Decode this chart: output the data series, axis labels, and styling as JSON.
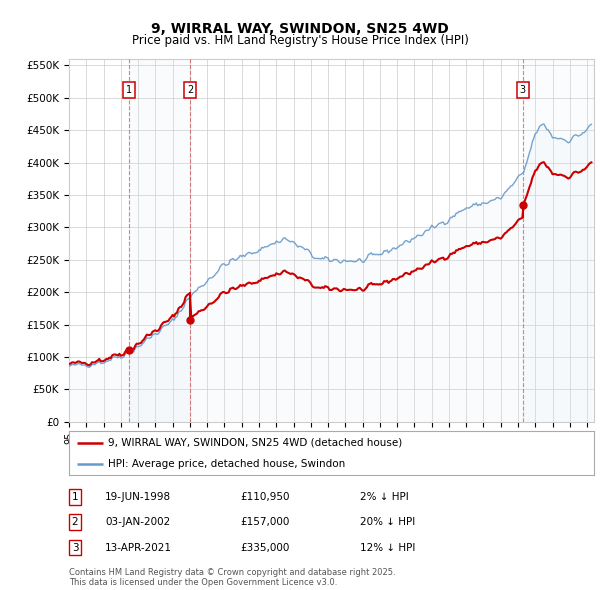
{
  "title": "9, WIRRAL WAY, SWINDON, SN25 4WD",
  "subtitle": "Price paid vs. HM Land Registry's House Price Index (HPI)",
  "legend_house": "9, WIRRAL WAY, SWINDON, SN25 4WD (detached house)",
  "legend_hpi": "HPI: Average price, detached house, Swindon",
  "sale1_date": "19-JUN-1998",
  "sale1_price": 110950,
  "sale1_hpi": "2% ↓ HPI",
  "sale2_date": "03-JAN-2002",
  "sale2_price": 157000,
  "sale2_hpi": "20% ↓ HPI",
  "sale3_date": "13-APR-2021",
  "sale3_price": 335000,
  "sale3_hpi": "12% ↓ HPI",
  "footer": "Contains HM Land Registry data © Crown copyright and database right 2025.\nThis data is licensed under the Open Government Licence v3.0.",
  "house_color": "#cc0000",
  "hpi_color": "#6699cc",
  "hpi_fill_color": "#dae8f5",
  "background_color": "#ffffff",
  "grid_color": "#cccccc",
  "ylim": [
    0,
    560000
  ],
  "yticks": [
    0,
    50000,
    100000,
    150000,
    200000,
    250000,
    300000,
    350000,
    400000,
    450000,
    500000,
    550000
  ],
  "ytick_labels": [
    "£0",
    "£50K",
    "£100K",
    "£150K",
    "£200K",
    "£250K",
    "£300K",
    "£350K",
    "£400K",
    "£450K",
    "£500K",
    "£550K"
  ]
}
